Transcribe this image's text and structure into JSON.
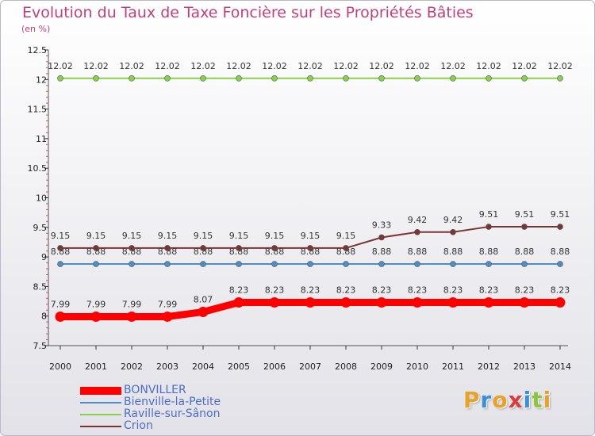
{
  "header": {
    "title": "Evolution du Taux de Taxe Foncière sur les Propriétés Bâties",
    "subtitle": "(en %)"
  },
  "logo": {
    "text": "Proxiti",
    "colors": [
      "#e8a12a",
      "#3c8ed8",
      "#e8a12a",
      "#d83c3c",
      "#3c8ed8",
      "#8cc43c",
      "#e8a12a"
    ]
  },
  "chart_data": {
    "type": "line",
    "title": "Evolution du Taux de Taxe Foncière sur les Propriétés Bâties",
    "subtitle": "(en %)",
    "x": [
      2000,
      2001,
      2002,
      2003,
      2004,
      2005,
      2006,
      2007,
      2008,
      2009,
      2010,
      2011,
      2012,
      2013,
      2014
    ],
    "ylim": [
      7.5,
      12.5
    ],
    "yticks": [
      7.5,
      8,
      8.5,
      9,
      9.5,
      10,
      10.5,
      11,
      11.5,
      12,
      12.5
    ],
    "grid": false,
    "legend": "bottom-left",
    "series": [
      {
        "name": "BONVILLER",
        "color": "#ff0000",
        "emphasis": true,
        "values": [
          7.99,
          7.99,
          7.99,
          7.99,
          8.07,
          8.23,
          8.23,
          8.23,
          8.23,
          8.23,
          8.23,
          8.23,
          8.23,
          8.23,
          8.23
        ],
        "labels": [
          "7.99",
          "7.99",
          "7.99",
          "7.99",
          "8.07",
          "8.23",
          "8.23",
          "8.23",
          "8.23",
          "8.23",
          "8.23",
          "8.23",
          "8.23",
          "8.23",
          "8.23"
        ]
      },
      {
        "name": "Bienville-la-Petite",
        "color": "#4d8ec7",
        "values": [
          8.88,
          8.88,
          8.88,
          8.88,
          8.88,
          8.88,
          8.88,
          8.88,
          8.88,
          8.88,
          8.88,
          8.88,
          8.88,
          8.88,
          8.88
        ],
        "labels": [
          "8.88",
          "8.88",
          "8.88",
          "8.88",
          "8.88",
          "8.88",
          "8.88",
          "8.88",
          "8.88",
          "8.88",
          "8.88",
          "8.88",
          "8.88",
          "8.88",
          "8.88"
        ]
      },
      {
        "name": "Raville-sur-Sânon",
        "color": "#8ad04f",
        "values": [
          12.02,
          12.02,
          12.02,
          12.02,
          12.02,
          12.02,
          12.02,
          12.02,
          12.02,
          12.02,
          12.02,
          12.02,
          12.02,
          12.02,
          12.02
        ],
        "labels": [
          "12.02",
          "12.02",
          "12.02",
          "12.02",
          "12.02",
          "12.02",
          "12.02",
          "12.02",
          "12.02",
          "12.02",
          "12.02",
          "12.02",
          "12.02",
          "12.02",
          "12.02"
        ]
      },
      {
        "name": "Crion",
        "color": "#7a3535",
        "values": [
          9.15,
          9.15,
          9.15,
          9.15,
          9.15,
          9.15,
          9.15,
          9.15,
          9.15,
          9.33,
          9.42,
          9.42,
          9.51,
          9.51,
          9.51
        ],
        "labels": [
          "9.15",
          "9.15",
          "9.15",
          "9.15",
          "9.15",
          "9.15",
          "9.15",
          "9.15",
          "9.15",
          "9.33",
          "9.42",
          "9.42",
          "9.51",
          "9.51",
          "9.51"
        ]
      }
    ]
  }
}
